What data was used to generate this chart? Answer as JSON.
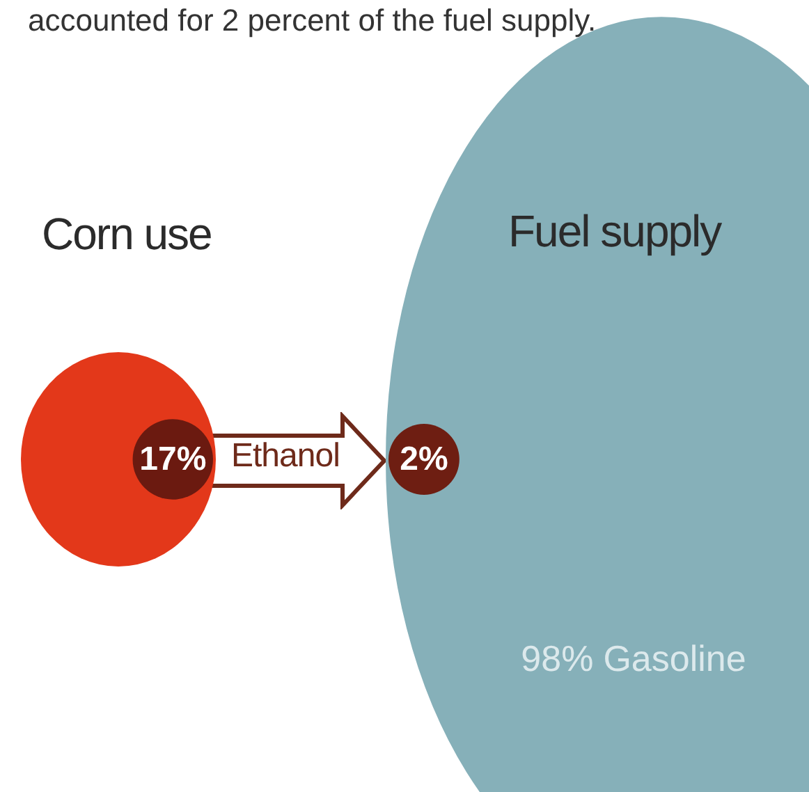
{
  "chart_data": [
    {
      "type": "other",
      "title": "Corn use",
      "categories": [
        "Ethanol"
      ],
      "values": [
        17
      ],
      "value_labels": [
        "17%"
      ],
      "colors": [
        "#6b1a10"
      ],
      "color": "#e3381a"
    },
    {
      "type": "other",
      "title": "Fuel supply",
      "categories": [
        null,
        "Gasoline"
      ],
      "values": [
        2,
        98
      ],
      "value_labels": [
        "2%",
        "98%"
      ],
      "colors": [
        "#6e1e12",
        "#86b0b9"
      ],
      "annotations": [
        "accounted for 2 percent of the fuel supply."
      ]
    }
  ]
}
